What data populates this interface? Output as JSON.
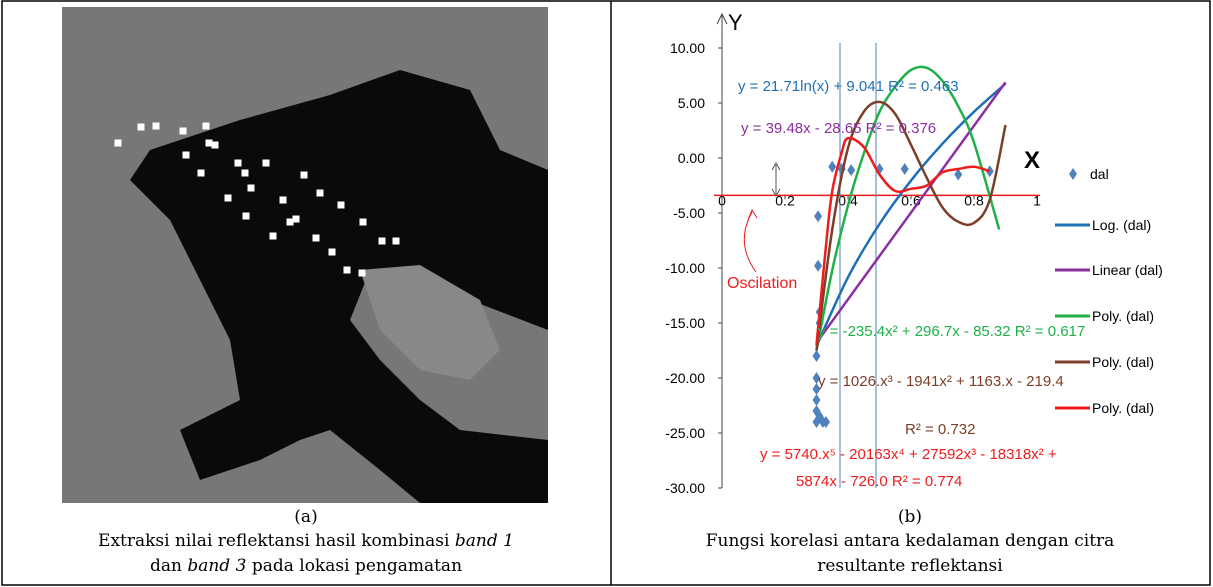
{
  "panel_a": {
    "label": "(a)",
    "caption": [
      "Extraksi nilai reflektansi hasil kombinasi ",
      "band 1",
      "dan ",
      "band 3",
      " pada lokasi pengamatan"
    ]
  },
  "panel_b": {
    "label": "(b)",
    "caption": [
      "Fungsi korelasi antara kedalaman dengan citra",
      "resultante reflektansi"
    ]
  },
  "chart_data": {
    "type": "scatter",
    "x_label": "X",
    "y_label": "Y",
    "xlim": [
      0,
      1
    ],
    "ylim": [
      -30,
      10
    ],
    "x_axis_at": -3.4,
    "xticks": [
      0,
      0.2,
      0.4,
      0.6,
      0.8,
      1
    ],
    "yticks": [
      {
        "value": 10,
        "label": "10.00"
      },
      {
        "value": 5,
        "label": "5.00"
      },
      {
        "value": 0,
        "label": "0.00"
      },
      {
        "value": -5,
        "label": "-5.00"
      },
      {
        "value": -10,
        "label": "-10.00"
      },
      {
        "value": -15,
        "label": "-15.00"
      },
      {
        "value": -20,
        "label": "-20.00"
      },
      {
        "value": -25,
        "label": "-25.00"
      },
      {
        "value": -30,
        "label": "-30.00"
      }
    ],
    "series": [
      {
        "name": "dal",
        "kind": "points",
        "color": "#4f81bd",
        "x": [
          0.3,
          0.3,
          0.3,
          0.3,
          0.3,
          0.3,
          0.31,
          0.31,
          0.31,
          0.32,
          0.33,
          0.305,
          0.305,
          0.35,
          0.38,
          0.41,
          0.5,
          0.58,
          0.75,
          0.85
        ],
        "values": [
          -24,
          -23,
          -22,
          -21,
          -20,
          -18,
          -15,
          -14,
          -23.5,
          -24,
          -24,
          -9.8,
          -5.3,
          -0.8,
          -1,
          -1.1,
          -1,
          -1,
          -1.5,
          -1.2
        ]
      },
      {
        "name": "Log. (dal)",
        "kind": "line",
        "color": "#1f6fb8",
        "x": [
          0.3,
          0.4,
          0.5,
          0.6,
          0.7,
          0.8,
          0.9
        ],
        "values": [
          -17.1,
          -10.85,
          -6,
          -2.05,
          1.3,
          4.2,
          6.75
        ]
      },
      {
        "name": "Linear (dal)",
        "kind": "line",
        "color": "#8b2fa0",
        "x": [
          0.3,
          0.9
        ],
        "values": [
          -16.8,
          6.88
        ]
      },
      {
        "name": "Poly. (dal)",
        "kind": "line",
        "color": "#1fb04a",
        "x": [
          0.3,
          0.35,
          0.4,
          0.45,
          0.5,
          0.55,
          0.6,
          0.65,
          0.7,
          0.75,
          0.8,
          0.88
        ],
        "values": [
          -17.5,
          -10.2,
          -4.3,
          0.4,
          4.2,
          6.5,
          8,
          8.2,
          7,
          4.7,
          1.4,
          -6.5
        ]
      },
      {
        "name": "Poly. (dal)",
        "kind": "line",
        "color": "#7b3f2a",
        "x": [
          0.3,
          0.35,
          0.4,
          0.45,
          0.5,
          0.55,
          0.6,
          0.65,
          0.7,
          0.75,
          0.8,
          0.85,
          0.9
        ],
        "values": [
          -17.5,
          -6.5,
          0.9,
          4.2,
          5.1,
          4,
          1.2,
          -1.8,
          -4.5,
          -5.8,
          -5.9,
          -3.8,
          3
        ]
      },
      {
        "name": "Poly. (dal)",
        "kind": "line",
        "color": "#ee1c1c",
        "x": [
          0.3,
          0.33,
          0.35,
          0.38,
          0.4,
          0.45,
          0.5,
          0.55,
          0.6,
          0.65,
          0.7,
          0.75,
          0.8,
          0.85
        ],
        "values": [
          -17,
          -8,
          -3,
          0.5,
          1.8,
          1,
          -1.5,
          -3,
          -2.8,
          -2.5,
          -1.3,
          -1,
          -0.8,
          -1.2
        ]
      }
    ],
    "annotations": [
      {
        "text": "y = 21.71ln(x) + 9.041  R² = 0.463",
        "color": "#1f6fb8"
      },
      {
        "text": "y = 39.48x - 28.65  R² = 0.376",
        "color": "#8b2fa0"
      },
      {
        "text": "Oscilation",
        "color": "#ee1c1c"
      },
      {
        "text": "y = -235.4x² + 296.7x - 85.32  R² = 0.617",
        "color": "#1fb04a"
      },
      {
        "text": "y = 1026.x³ - 1941x² + 1163.x - 219.4",
        "color": "#7b3f2a"
      },
      {
        "text": "R² = 0.732",
        "color": "#7b3f2a"
      },
      {
        "text": "y = 5740.x⁵ - 20163x⁴ + 27592x³ - 18318x² +",
        "color": "#ee1c1c"
      },
      {
        "text": "5874x - 726.0   R² = 0.774",
        "color": "#ee1c1c"
      }
    ]
  }
}
